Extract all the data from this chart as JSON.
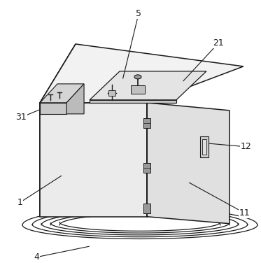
{
  "background_color": "#ffffff",
  "line_color": "#1a1a1a",
  "left_face_color": "#d8d8d8",
  "front_face_color": "#ebebeb",
  "right_face_color": "#e0e0e0",
  "top_face_color": "#f2f2f2",
  "figsize": [
    3.73,
    3.76
  ],
  "dpi": 100
}
